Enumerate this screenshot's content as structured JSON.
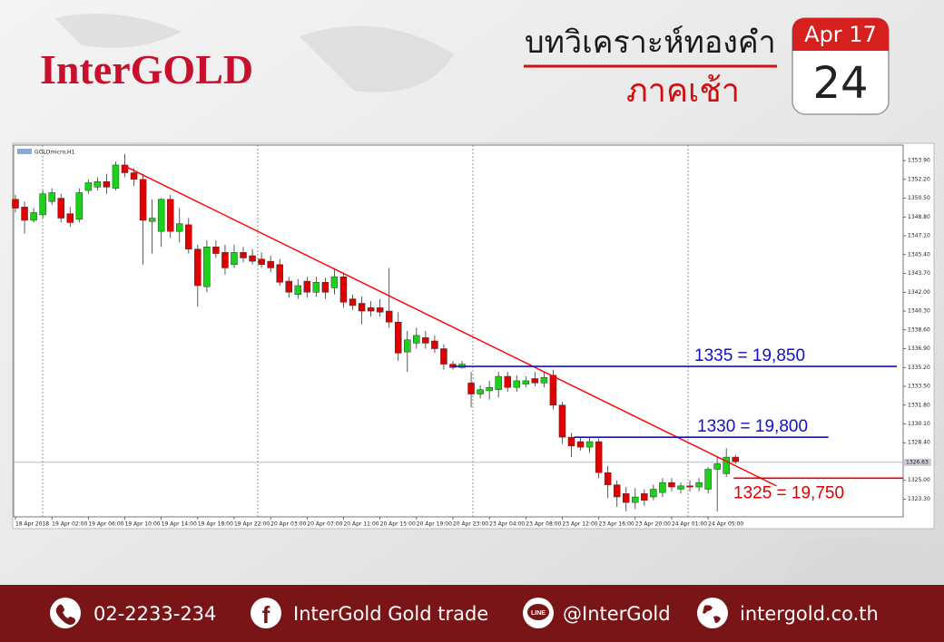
{
  "header": {
    "logo": "InterGOLD",
    "title": "บทวิเคราะห์ทองคำ",
    "subtitle": "ภาคเช้า",
    "calendar": {
      "month": "Apr 17",
      "day": "24"
    }
  },
  "chart_data": {
    "type": "candlestick",
    "title": "GOLDmicro,H1",
    "categories": [
      "18 Apr 2018",
      null,
      null,
      null,
      "19 Apr 02:00",
      null,
      null,
      null,
      "19 Apr 06:00",
      null,
      null,
      null,
      "19 Apr 10:00",
      null,
      null,
      null,
      "19 Apr 14:00",
      null,
      null,
      null,
      "19 Apr 18:00",
      null,
      null,
      null,
      "19 Apr 22:00",
      null,
      null,
      null,
      "20 Apr 03:00",
      null,
      null,
      null,
      "20 Apr 07:00",
      null,
      null,
      null,
      "20 Apr 11:00",
      null,
      null,
      null,
      "20 Apr 15:00",
      null,
      null,
      null,
      "20 Apr 19:00",
      null,
      null,
      null,
      "20 Apr 23:00",
      null,
      null,
      null,
      "23 Apr 04:00",
      null,
      null,
      null,
      "23 Apr 08:00",
      null,
      null,
      null,
      "23 Apr 12:00",
      null,
      null,
      null,
      "23 Apr 16:00",
      null,
      null,
      null,
      "23 Apr 20:00",
      null,
      null,
      null,
      "24 Apr 01:00",
      null,
      null,
      null,
      "24 Apr 05:00",
      null,
      null,
      null
    ],
    "open": [
      1350.4,
      1349.7,
      1348.5,
      1349.0,
      1350.2,
      1350.5,
      1349.1,
      1348.6,
      1351.2,
      1351.5,
      1352.0,
      1351.4,
      1353.5,
      1352.8,
      1352.2,
      1348.4,
      1347.5,
      1350.4,
      1347.5,
      1348.1,
      1345.9,
      1342.5,
      1346.1,
      1345.6,
      1344.5,
      1345.6,
      1345.3,
      1345.0,
      1344.8,
      1344.5,
      1343.0,
      1341.8,
      1343.0,
      1342.0,
      1342.9,
      1342.4,
      1343.4,
      1341.4,
      1341.0,
      1340.6,
      1340.6,
      1340.3,
      1339.3,
      1336.6,
      1337.4,
      1337.9,
      1337.6,
      1336.9,
      1335.5,
      1335.2,
      1333.8,
      1332.8,
      1333.1,
      1333.2,
      1334.4,
      1333.4,
      1333.7,
      1334.2,
      1333.8,
      1334.5,
      1331.8,
      1328.9,
      1328.5,
      1328.0,
      1328.5,
      1325.7,
      1324.6,
      1323.8,
      1323.0,
      1323.8,
      1323.5,
      1323.9,
      1324.8,
      1324.2,
      1324.5,
      1324.4,
      1324.2,
      1326.0,
      1325.6,
      1327.1
    ],
    "high": [
      1350.8,
      1350.2,
      1349.6,
      1351.2,
      1351.4,
      1350.9,
      1349.7,
      1351.4,
      1352.2,
      1352.4,
      1352.7,
      1353.8,
      1354.5,
      1353.2,
      1352.7,
      1350.4,
      1350.5,
      1350.8,
      1349.6,
      1348.7,
      1346.3,
      1346.7,
      1346.7,
      1346.3,
      1346.3,
      1346.1,
      1345.9,
      1345.6,
      1345.3,
      1345.0,
      1343.4,
      1343.2,
      1343.4,
      1343.4,
      1343.3,
      1344.2,
      1343.8,
      1341.8,
      1341.6,
      1341.2,
      1341.4,
      1344.2,
      1340.2,
      1338.5,
      1338.8,
      1338.5,
      1338.1,
      1337.3,
      1335.8,
      1335.8,
      1334.8,
      1333.6,
      1334.0,
      1334.8,
      1334.8,
      1334.5,
      1334.4,
      1334.8,
      1334.8,
      1335.0,
      1332.1,
      1329.3,
      1328.9,
      1328.9,
      1328.8,
      1326.3,
      1325.0,
      1324.4,
      1324.3,
      1324.2,
      1324.6,
      1325.2,
      1325.2,
      1324.8,
      1325.0,
      1325.2,
      1326.2,
      1327.1,
      1327.9,
      1327.3
    ],
    "low": [
      1349.2,
      1347.3,
      1348.3,
      1348.7,
      1349.9,
      1348.3,
      1347.9,
      1348.3,
      1350.9,
      1351.2,
      1350.9,
      1351.2,
      1352.4,
      1351.6,
      1344.5,
      1345.5,
      1346.1,
      1346.9,
      1346.5,
      1345.5,
      1340.7,
      1342.0,
      1345.1,
      1343.6,
      1344.2,
      1344.7,
      1344.5,
      1344.2,
      1343.8,
      1342.6,
      1341.5,
      1341.4,
      1341.5,
      1341.6,
      1341.4,
      1341.8,
      1340.6,
      1340.4,
      1339.1,
      1339.8,
      1339.8,
      1338.8,
      1335.8,
      1334.8,
      1336.9,
      1336.9,
      1336.5,
      1335.0,
      1335.0,
      1335.1,
      1331.6,
      1332.4,
      1332.3,
      1332.5,
      1333.0,
      1333.0,
      1333.4,
      1333.5,
      1333.4,
      1331.4,
      1328.3,
      1327.1,
      1327.7,
      1327.5,
      1325.2,
      1323.4,
      1322.6,
      1322.2,
      1322.4,
      1322.7,
      1323.2,
      1323.5,
      1324.0,
      1323.8,
      1324.0,
      1324.0,
      1323.8,
      1322.2,
      1325.3,
      1326.5
    ],
    "close": [
      1349.6,
      1348.5,
      1349.2,
      1350.9,
      1351.0,
      1348.7,
      1348.3,
      1351.0,
      1351.9,
      1352.0,
      1351.5,
      1353.5,
      1352.8,
      1352.2,
      1348.5,
      1348.7,
      1350.4,
      1347.5,
      1348.2,
      1345.9,
      1342.6,
      1346.1,
      1345.5,
      1344.2,
      1345.6,
      1345.1,
      1344.8,
      1344.5,
      1344.2,
      1342.9,
      1342.0,
      1342.6,
      1342.0,
      1342.9,
      1342.0,
      1343.4,
      1341.1,
      1340.8,
      1340.3,
      1340.3,
      1340.2,
      1339.3,
      1336.5,
      1337.7,
      1338.1,
      1337.4,
      1336.9,
      1335.5,
      1335.2,
      1335.5,
      1332.8,
      1333.2,
      1333.4,
      1334.4,
      1333.4,
      1334.0,
      1334.0,
      1333.8,
      1334.3,
      1331.8,
      1328.9,
      1328.1,
      1328.0,
      1328.5,
      1325.7,
      1324.6,
      1323.5,
      1323.0,
      1323.5,
      1323.2,
      1324.2,
      1324.8,
      1324.4,
      1324.5,
      1324.4,
      1324.8,
      1326.0,
      1326.5,
      1327.1,
      1326.7
    ],
    "up_color": "#19d219",
    "down_color": "#e00000",
    "xlim": [
      -0.2,
      97.4
    ],
    "ylim": [
      1321.7,
      1355.3
    ],
    "yticks": [
      {
        "value": 1353.9,
        "label": "1353.90"
      },
      {
        "value": 1352.2,
        "label": "1352.20"
      },
      {
        "value": 1350.5,
        "label": "1350.50"
      },
      {
        "value": 1348.8,
        "label": "1348.80"
      },
      {
        "value": 1347.1,
        "label": "1347.10"
      },
      {
        "value": 1345.4,
        "label": "1345.40"
      },
      {
        "value": 1343.7,
        "label": "1343.70"
      },
      {
        "value": 1342,
        "label": "1342.00"
      },
      {
        "value": 1340.3,
        "label": "1340.30"
      },
      {
        "value": 1338.6,
        "label": "1338.60"
      },
      {
        "value": 1336.9,
        "label": "1336.90"
      },
      {
        "value": 1335.2,
        "label": "1335.20"
      },
      {
        "value": 1333.5,
        "label": "1333.50"
      },
      {
        "value": 1331.8,
        "label": "1331.80"
      },
      {
        "value": 1330.1,
        "label": "1330.10"
      },
      {
        "value": 1328.4,
        "label": "1328.40"
      },
      {
        "value": 1325,
        "label": "1325.00"
      },
      {
        "value": 1323.3,
        "label": "1323.30"
      }
    ],
    "current_price": 1326.63,
    "levels": [
      {
        "label": "1335 = 19,850",
        "value": 1335.3,
        "x": [
          47.9,
          96.7
        ],
        "color": "#1010c8"
      },
      {
        "label": "1330 = 19,800",
        "value": 1328.9,
        "x": [
          61.3,
          89.2
        ],
        "color": "#1010c8"
      },
      {
        "label": "1325 = 19,750",
        "value": 1325.2,
        "x": [
          78.8,
          97.4
        ],
        "color": "#e00000"
      }
    ],
    "trendline": {
      "x": [
        12,
        83.5
      ],
      "y": [
        1353.4,
        1324.5
      ],
      "color": "#ff0000"
    }
  },
  "footer": {
    "phone": "02-2233-234",
    "facebook": "InterGold Gold trade",
    "line": "@InterGold",
    "website": "intergold.co.th"
  }
}
